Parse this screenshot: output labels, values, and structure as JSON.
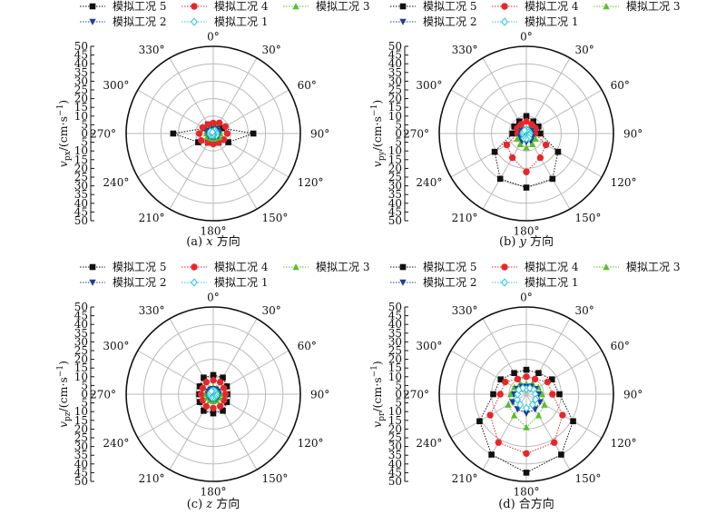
{
  "figure": {
    "legend_entries": [
      "模拟工况 5",
      "模拟工况 4",
      "模拟工况 3",
      "模拟工况 2",
      "模拟工况 1"
    ],
    "angle_labels": [
      "0°",
      "30°",
      "60°",
      "90°",
      "120°",
      "150°",
      "180°",
      "210°",
      "240°",
      "270°",
      "300°",
      "330°"
    ],
    "radial_ticks": [
      "50",
      "45",
      "40",
      "35",
      "30",
      "25",
      "20",
      "15",
      "10",
      "5",
      "0",
      "5",
      "10",
      "15",
      "20",
      "25",
      "30",
      "35",
      "40",
      "45",
      "50"
    ]
  },
  "chart_data": [
    {
      "type": "polar-line",
      "caption_prefix": "(a) ",
      "caption_axis": "x",
      "caption_suffix": " 方向",
      "ylabel_main": "v",
      "ylabel_sub": "px",
      "ylabel_unit": "/(cm·s",
      "ylabel_exp": "−1",
      "ylabel_close": ")",
      "rlim": [
        0,
        50
      ],
      "angles_deg": [
        0,
        30,
        60,
        90,
        120,
        150,
        180,
        210,
        240,
        270,
        300,
        330
      ],
      "series": [
        {
          "name": "模拟工况 5",
          "color": "#111111",
          "marker": "square",
          "values": [
            5,
            6,
            6,
            23,
            10,
            6,
            5,
            6,
            10,
            23,
            6,
            6
          ]
        },
        {
          "name": "模拟工况 4",
          "color": "#e8262a",
          "marker": "circle",
          "values": [
            6,
            7,
            8,
            8,
            7,
            6,
            6,
            6,
            8,
            8,
            7,
            6
          ]
        },
        {
          "name": "模拟工况 3",
          "color": "#5bbf2c",
          "marker": "triangle-up",
          "values": [
            3,
            4,
            4,
            4,
            4,
            3,
            3,
            3,
            4,
            4,
            4,
            3
          ]
        },
        {
          "name": "模拟工况 2",
          "color": "#1f3f9a",
          "marker": "triangle-down",
          "values": [
            2,
            3,
            3,
            3,
            3,
            2,
            2,
            2,
            3,
            3,
            3,
            2
          ]
        },
        {
          "name": "模拟工况 1",
          "color": "#2bc4d6",
          "marker": "diamond",
          "values": [
            1,
            2,
            2,
            2,
            2,
            1,
            1,
            1,
            2,
            2,
            2,
            1
          ]
        }
      ]
    },
    {
      "type": "polar-line",
      "caption_prefix": "(b) ",
      "caption_axis": "y",
      "caption_suffix": " 方向",
      "ylabel_main": "v",
      "ylabel_sub": "py",
      "ylabel_unit": "/(cm·s",
      "ylabel_exp": "−1",
      "ylabel_close": ")",
      "rlim": [
        0,
        50
      ],
      "angles_deg": [
        0,
        30,
        60,
        90,
        120,
        150,
        180,
        210,
        240,
        270,
        300,
        330
      ],
      "series": [
        {
          "name": "模拟工况 5",
          "color": "#111111",
          "marker": "square",
          "values": [
            10,
            8,
            8,
            8,
            21,
            30,
            31,
            30,
            21,
            8,
            8,
            8
          ]
        },
        {
          "name": "模拟工况 4",
          "color": "#e8262a",
          "marker": "circle",
          "values": [
            7,
            6,
            6,
            5,
            13,
            16,
            22,
            16,
            13,
            5,
            6,
            6
          ]
        },
        {
          "name": "模拟工况 3",
          "color": "#5bbf2c",
          "marker": "triangle-up",
          "values": [
            3,
            3,
            3,
            3,
            6,
            7,
            8,
            7,
            6,
            3,
            3,
            3
          ]
        },
        {
          "name": "模拟工况 2",
          "color": "#1f3f9a",
          "marker": "triangle-down",
          "values": [
            2,
            2,
            3,
            3,
            4,
            5,
            5,
            5,
            4,
            3,
            3,
            2
          ]
        },
        {
          "name": "模拟工况 1",
          "color": "#2bc4d6",
          "marker": "diamond",
          "values": [
            2,
            2,
            2,
            2,
            2,
            3,
            3,
            3,
            2,
            2,
            2,
            2
          ]
        }
      ]
    },
    {
      "type": "polar-line",
      "caption_prefix": "(c) ",
      "caption_axis": "z",
      "caption_suffix": " 方向",
      "ylabel_main": "v",
      "ylabel_sub": "pz",
      "ylabel_unit": "/(cm·s",
      "ylabel_exp": "−1",
      "ylabel_close": ")",
      "rlim": [
        0,
        50
      ],
      "angles_deg": [
        0,
        30,
        60,
        90,
        120,
        150,
        180,
        210,
        240,
        270,
        300,
        330
      ],
      "series": [
        {
          "name": "模拟工况 5",
          "color": "#111111",
          "marker": "square",
          "values": [
            11,
            11,
            9,
            8,
            9,
            11,
            11,
            11,
            9,
            8,
            9,
            11
          ]
        },
        {
          "name": "模拟工况 4",
          "color": "#e8262a",
          "marker": "circle",
          "values": [
            8,
            8,
            7,
            7,
            7,
            8,
            8,
            8,
            7,
            7,
            7,
            8
          ]
        },
        {
          "name": "模拟工况 3",
          "color": "#5bbf2c",
          "marker": "triangle-up",
          "values": [
            4,
            4,
            4,
            4,
            4,
            4,
            4,
            4,
            4,
            4,
            4,
            4
          ]
        },
        {
          "name": "模拟工况 2",
          "color": "#1f3f9a",
          "marker": "triangle-down",
          "values": [
            3,
            3,
            3,
            3,
            3,
            3,
            3,
            3,
            3,
            3,
            3,
            3
          ]
        },
        {
          "name": "模拟工况 1",
          "color": "#2bc4d6",
          "marker": "diamond",
          "values": [
            2,
            2,
            2,
            2,
            2,
            2,
            2,
            2,
            2,
            2,
            2,
            2
          ]
        }
      ]
    },
    {
      "type": "polar-line",
      "caption_prefix": "(d) ",
      "caption_axis": "",
      "caption_suffix": "合方向",
      "ylabel_main": "v",
      "ylabel_sub": "pr",
      "ylabel_unit": "/(cm·s",
      "ylabel_exp": "−1",
      "ylabel_close": ")",
      "rlim": [
        0,
        50
      ],
      "angles_deg": [
        0,
        30,
        60,
        90,
        120,
        150,
        180,
        210,
        240,
        270,
        300,
        330
      ],
      "series": [
        {
          "name": "模拟工况 5",
          "color": "#111111",
          "marker": "square",
          "values": [
            14,
            14,
            17,
            19,
            31,
            40,
            45,
            40,
            31,
            19,
            17,
            14
          ]
        },
        {
          "name": "模拟工况 4",
          "color": "#e8262a",
          "marker": "circle",
          "values": [
            10,
            10,
            14,
            15,
            24,
            32,
            34,
            32,
            24,
            15,
            14,
            10
          ]
        },
        {
          "name": "模拟工况 3",
          "color": "#5bbf2c",
          "marker": "triangle-up",
          "values": [
            6,
            7,
            8,
            9,
            12,
            14,
            19,
            14,
            12,
            9,
            8,
            7
          ]
        },
        {
          "name": "模拟工况 2",
          "color": "#1f3f9a",
          "marker": "triangle-down",
          "values": [
            4,
            5,
            6,
            7,
            9,
            10,
            11,
            10,
            9,
            7,
            6,
            5
          ]
        },
        {
          "name": "模拟工况 1",
          "color": "#2bc4d6",
          "marker": "diamond",
          "values": [
            3,
            4,
            5,
            5,
            6,
            7,
            8,
            7,
            6,
            5,
            5,
            4
          ]
        }
      ]
    }
  ]
}
